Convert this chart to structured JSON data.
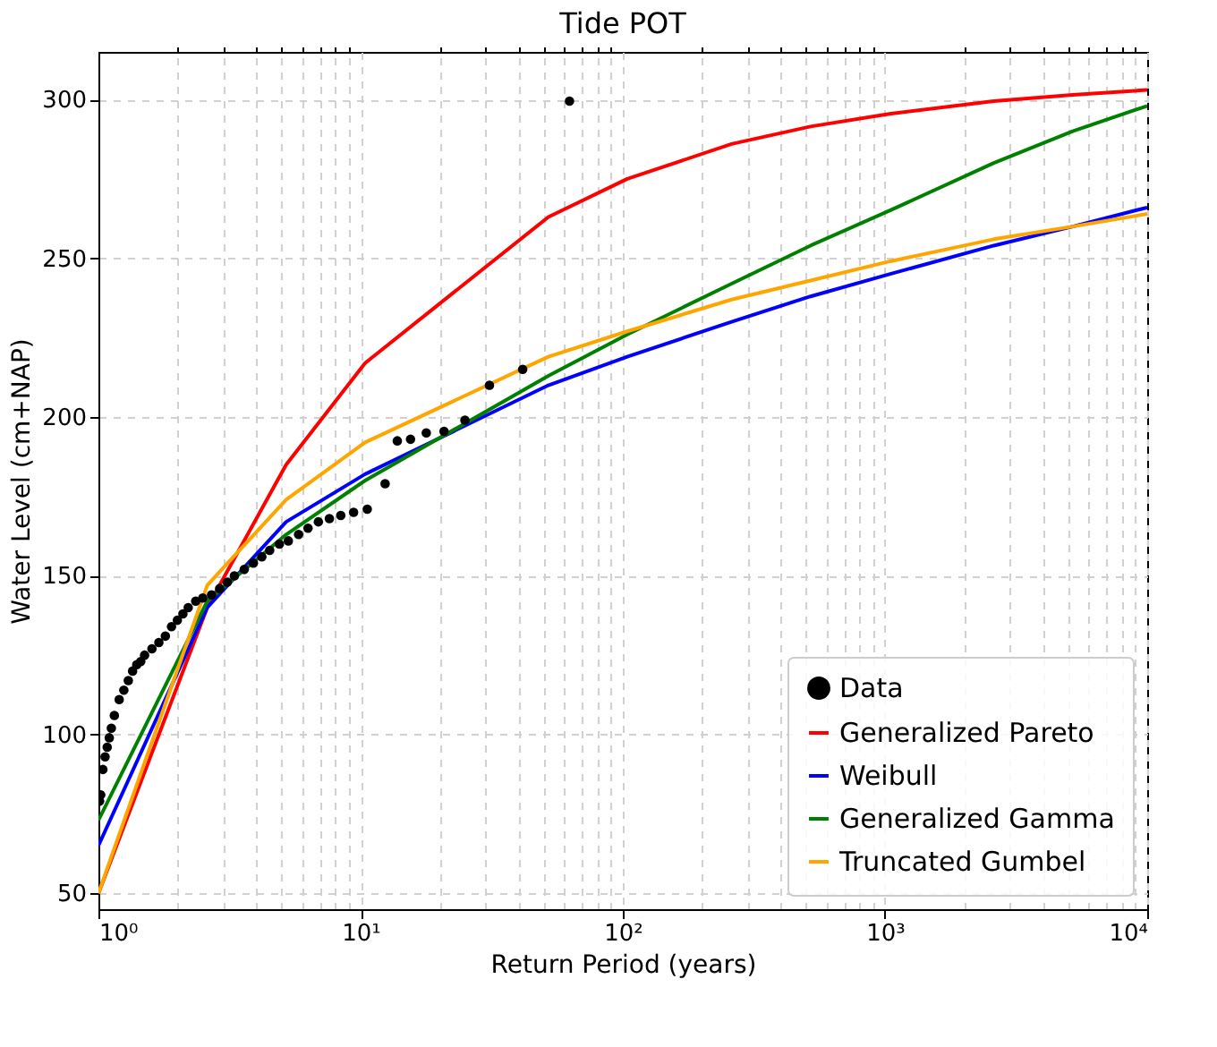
{
  "chart_data": {
    "type": "line",
    "title": "Tide POT",
    "xlabel": "Return Period (years)",
    "ylabel": "Water Level (cm+NAP)",
    "log": "x",
    "xlim": [
      1,
      10000
    ],
    "ylim": [
      45,
      315
    ],
    "xticks": [
      {
        "value": 1,
        "label": "10⁰"
      },
      {
        "value": 2,
        "label": null
      },
      {
        "value": 3,
        "label": null
      },
      {
        "value": 4,
        "label": null
      },
      {
        "value": 5,
        "label": null
      },
      {
        "value": 6,
        "label": null
      },
      {
        "value": 7,
        "label": null
      },
      {
        "value": 8,
        "label": null
      },
      {
        "value": 9,
        "label": null
      },
      {
        "value": 10,
        "label": "10¹"
      },
      {
        "value": 20,
        "label": null
      },
      {
        "value": 30,
        "label": null
      },
      {
        "value": 40,
        "label": null
      },
      {
        "value": 50,
        "label": null
      },
      {
        "value": 60,
        "label": null
      },
      {
        "value": 70,
        "label": null
      },
      {
        "value": 80,
        "label": null
      },
      {
        "value": 90,
        "label": null
      },
      {
        "value": 100,
        "label": "10²"
      },
      {
        "value": 200,
        "label": null
      },
      {
        "value": 300,
        "label": null
      },
      {
        "value": 400,
        "label": null
      },
      {
        "value": 500,
        "label": null
      },
      {
        "value": 600,
        "label": null
      },
      {
        "value": 700,
        "label": null
      },
      {
        "value": 800,
        "label": null
      },
      {
        "value": 900,
        "label": null
      },
      {
        "value": 1000,
        "label": "10³"
      },
      {
        "value": 2000,
        "label": null
      },
      {
        "value": 3000,
        "label": null
      },
      {
        "value": 4000,
        "label": null
      },
      {
        "value": 5000,
        "label": null
      },
      {
        "value": 6000,
        "label": null
      },
      {
        "value": 7000,
        "label": null
      },
      {
        "value": 8000,
        "label": null
      },
      {
        "value": 9000,
        "label": null
      },
      {
        "value": 10000,
        "label": "10⁴"
      }
    ],
    "yticks": [
      50,
      100,
      150,
      200,
      250,
      300
    ],
    "grid": true,
    "legend": "bottom right",
    "series": [
      {
        "name": "Data",
        "type": "scatter",
        "marker": "circle",
        "color": "#000000",
        "x": [
          1.01,
          1.02,
          1.04,
          1.06,
          1.08,
          1.1,
          1.12,
          1.15,
          1.2,
          1.25,
          1.3,
          1.35,
          1.4,
          1.45,
          1.5,
          1.6,
          1.7,
          1.8,
          1.9,
          2.0,
          2.1,
          2.2,
          2.35,
          2.5,
          2.7,
          2.9,
          3.1,
          3.3,
          3.6,
          3.9,
          4.2,
          4.5,
          4.9,
          5.3,
          5.8,
          6.3,
          6.9,
          7.6,
          8.4,
          9.4,
          10.6,
          12.4,
          13.8,
          15.5,
          17.8,
          20.8,
          25,
          31,
          41.5,
          62.6
        ],
        "values": [
          79,
          81,
          89,
          93,
          96,
          99,
          102,
          106,
          111,
          114,
          117,
          120,
          122,
          123,
          125,
          127,
          129,
          131,
          134,
          136,
          138,
          140,
          142,
          143,
          144,
          146,
          148,
          150,
          152,
          154,
          156,
          158,
          160,
          161,
          163,
          165,
          167,
          168,
          169,
          170,
          171,
          179,
          192.5,
          193,
          195,
          195.5,
          199,
          210,
          215,
          299.5
        ]
      },
      {
        "name": "Generalized Pareto",
        "color": "#ff0000",
        "x": [
          1,
          2.6,
          5.2,
          10.4,
          52,
          104,
          260,
          520,
          1040,
          2600,
          5200,
          10000
        ],
        "values": [
          50,
          140,
          185,
          217,
          263,
          275,
          286,
          291.5,
          295.5,
          299.5,
          301.5,
          303
        ]
      },
      {
        "name": "Weibull",
        "color": "#0000ff",
        "x": [
          1,
          2.6,
          5.2,
          10.4,
          52,
          104,
          260,
          520,
          1040,
          2600,
          5200,
          10000
        ],
        "values": [
          65,
          140,
          167,
          182,
          210,
          219,
          230,
          238,
          245,
          254,
          260,
          266
        ]
      },
      {
        "name": "Generalized Gamma",
        "color": "#008000",
        "x": [
          1,
          2.6,
          5.2,
          10.4,
          52,
          104,
          260,
          520,
          1040,
          2600,
          5200,
          10000
        ],
        "values": [
          73,
          142,
          163,
          180,
          213,
          226,
          242,
          254,
          265,
          280,
          290,
          298
        ]
      },
      {
        "name": "Truncated Gumbel",
        "color": "#ffa500",
        "x": [
          1,
          2.6,
          5.2,
          10.4,
          52,
          104,
          260,
          520,
          1040,
          2600,
          5200,
          10000
        ],
        "values": [
          50,
          147,
          174,
          192,
          219,
          227,
          237,
          243,
          249,
          256,
          260,
          264
        ]
      }
    ]
  }
}
